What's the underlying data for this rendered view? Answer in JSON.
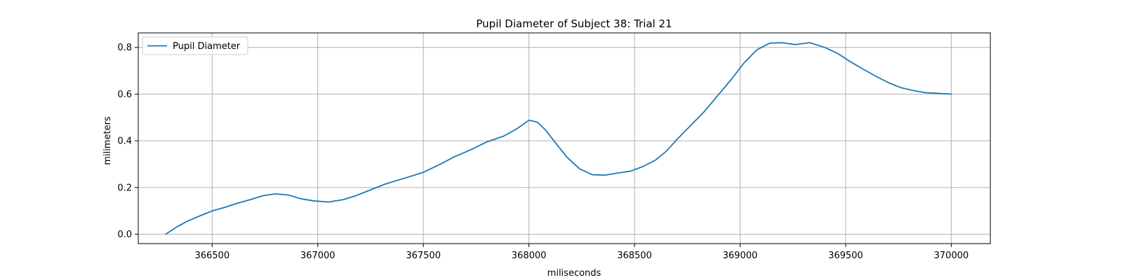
{
  "chart_data": {
    "type": "line",
    "title": "Pupil Diameter of Subject 38: Trial 21",
    "xlabel": "miliseconds",
    "ylabel": "milimeters",
    "xlim": [
      366150,
      370185
    ],
    "ylim": [
      -0.04,
      0.862
    ],
    "xticks": [
      366500,
      367000,
      367500,
      368000,
      368500,
      369000,
      369500,
      370000
    ],
    "xtick_labels": [
      "366500",
      "367000",
      "367500",
      "368000",
      "368500",
      "369000",
      "369500",
      "370000"
    ],
    "yticks": [
      0.0,
      0.2,
      0.4,
      0.6,
      0.8
    ],
    "ytick_labels": [
      "0.0",
      "0.2",
      "0.4",
      "0.6",
      "0.8"
    ],
    "grid": true,
    "legend_position": "upper-left",
    "series": [
      {
        "name": "Pupil Diameter",
        "color": "#1f77b4",
        "x": [
          366280,
          366330,
          366380,
          366440,
          366500,
          366560,
          366620,
          366680,
          366740,
          366800,
          366860,
          366920,
          366980,
          367050,
          367120,
          367180,
          367250,
          367320,
          367400,
          367500,
          367580,
          367650,
          367720,
          367800,
          367880,
          367940,
          368000,
          368040,
          368080,
          368120,
          368180,
          368240,
          368300,
          368360,
          368420,
          368480,
          368540,
          368600,
          368650,
          368700,
          368760,
          368830,
          368900,
          368960,
          369020,
          369080,
          369140,
          369200,
          369260,
          369330,
          369400,
          369460,
          369520,
          369580,
          369640,
          369700,
          369760,
          369820,
          369880,
          369940,
          370000
        ],
        "y": [
          0.0,
          0.03,
          0.055,
          0.078,
          0.1,
          0.115,
          0.133,
          0.148,
          0.165,
          0.173,
          0.168,
          0.152,
          0.143,
          0.138,
          0.148,
          0.165,
          0.19,
          0.215,
          0.237,
          0.265,
          0.3,
          0.333,
          0.36,
          0.395,
          0.42,
          0.45,
          0.488,
          0.48,
          0.445,
          0.398,
          0.33,
          0.28,
          0.255,
          0.253,
          0.262,
          0.27,
          0.29,
          0.318,
          0.355,
          0.405,
          0.46,
          0.525,
          0.6,
          0.665,
          0.735,
          0.79,
          0.818,
          0.82,
          0.812,
          0.82,
          0.8,
          0.775,
          0.74,
          0.708,
          0.678,
          0.65,
          0.628,
          0.615,
          0.606,
          0.603,
          0.6
        ]
      }
    ]
  }
}
